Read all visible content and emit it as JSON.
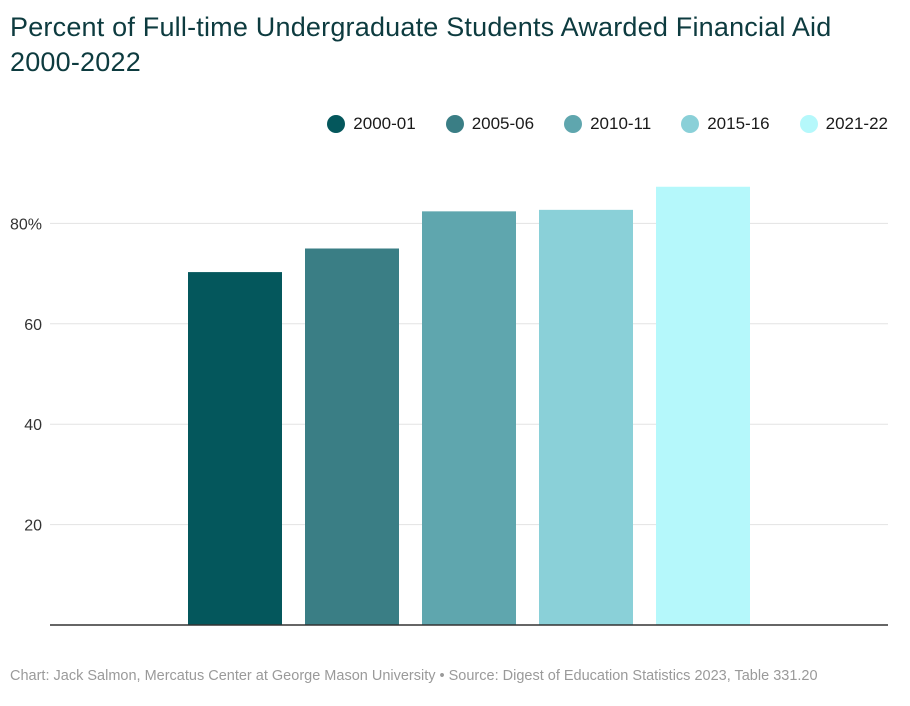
{
  "chart_data": {
    "type": "bar",
    "title": "Percent of Full-time Undergraduate Students Awarded Financial Aid 2000-2022",
    "categories": [
      "2000-01",
      "2005-06",
      "2010-11",
      "2015-16",
      "2021-22"
    ],
    "values": [
      70.3,
      75.0,
      82.4,
      82.7,
      87.3
    ],
    "colors": [
      "#04575c",
      "#3a7e85",
      "#5fa6ae",
      "#8ad0d8",
      "#b5f8fb"
    ],
    "ylim": [
      0,
      90
    ],
    "yticks": [
      20,
      40,
      60,
      80
    ],
    "ytick_labels": [
      "20",
      "40",
      "60",
      "80%"
    ],
    "grid": true,
    "legend_position": "top-right",
    "xlabel": "",
    "ylabel": ""
  },
  "footer": {
    "text": "Chart: Jack Salmon, Mercatus Center at George Mason University • Source: Digest of Education Statistics 2023, Table 331.20"
  }
}
